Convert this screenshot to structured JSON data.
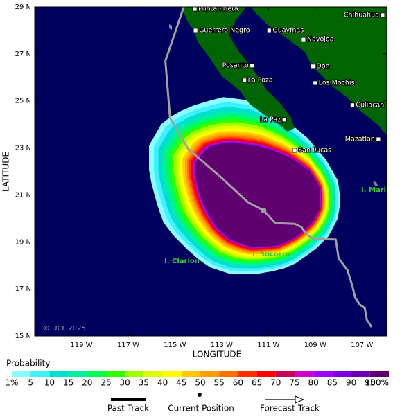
{
  "chart_data": {
    "type": "map",
    "xlabel": "LONGITUDE",
    "ylabel": "LATITUDE",
    "xlim": [
      121,
      105.94
    ],
    "ylim": [
      15,
      29
    ],
    "xticks": [
      {
        "value": 119,
        "label": "119 W"
      },
      {
        "value": 117,
        "label": "117 W"
      },
      {
        "value": 115,
        "label": "115 W"
      },
      {
        "value": 113,
        "label": "113 W"
      },
      {
        "value": 111,
        "label": "111 W"
      },
      {
        "value": 109,
        "label": "109 W"
      },
      {
        "value": 107,
        "label": "107 W"
      }
    ],
    "yticks": [
      {
        "value": 15,
        "label": "15 N"
      },
      {
        "value": 17,
        "label": "17 N"
      },
      {
        "value": 19,
        "label": "19 N"
      },
      {
        "value": 21,
        "label": "21 N"
      },
      {
        "value": 23,
        "label": "23 N"
      },
      {
        "value": 25,
        "label": "25 N"
      },
      {
        "value": 27,
        "label": "27 N"
      },
      {
        "value": 29,
        "label": "29 N"
      }
    ],
    "places": [
      {
        "name": "Punta Prieta",
        "lon": 114.15,
        "lat": 28.91
      },
      {
        "name": "Guerrero Negro",
        "lon": 114.12,
        "lat": 28.0
      },
      {
        "name": "Guaymas",
        "lon": 110.97,
        "lat": 28.0
      },
      {
        "name": "Chihuahua",
        "lon": 106.12,
        "lat": 28.65
      },
      {
        "name": "Navojoa",
        "lon": 109.5,
        "lat": 27.61
      },
      {
        "name": "Posarito",
        "lon": 111.7,
        "lat": 26.5
      },
      {
        "name": "Don",
        "lon": 109.1,
        "lat": 26.47
      },
      {
        "name": "La Poza",
        "lon": 112.03,
        "lat": 25.88
      },
      {
        "name": "Los Mochis",
        "lon": 109.0,
        "lat": 25.76
      },
      {
        "name": "Culiacan",
        "lon": 107.41,
        "lat": 24.82
      },
      {
        "name": "La Paz",
        "lon": 110.32,
        "lat": 24.2
      },
      {
        "name": "Mazatlan",
        "lon": 106.3,
        "lat": 23.37
      },
      {
        "name": "San Lucas",
        "lon": 109.88,
        "lat": 22.9
      }
    ],
    "islands": [
      "I. Clarion",
      "I. Socorro",
      "I. Maria"
    ],
    "past_track": {
      "name": "Past Track",
      "color": "#a0a0a0",
      "lon": [
        114.62,
        115.41,
        115.21,
        114.44,
        113.06,
        111.88,
        111.21
      ],
      "lat": [
        29.0,
        26.7,
        24.28,
        22.96,
        21.78,
        20.69,
        20.34
      ]
    },
    "current_position": {
      "name": "Current Position",
      "lon": 111.21,
      "lat": 20.34
    },
    "forecast_track": {
      "name": "Forecast Track",
      "color": "#a0a0a0",
      "lon": [
        111.21,
        110.71,
        109.88,
        109.59,
        109.38,
        109.09,
        108.12,
        108.0,
        107.62,
        107.41,
        107.29,
        107.09,
        106.88,
        106.79,
        106.59
      ],
      "lat": [
        20.34,
        19.8,
        19.77,
        19.63,
        19.33,
        19.13,
        19.1,
        18.3,
        17.8,
        17.12,
        16.62,
        16.33,
        16.18,
        15.68,
        15.38
      ]
    },
    "credit": "© UCL 2025",
    "probability": {
      "title": "Probability",
      "ticks": [
        {
          "value": 1,
          "label": "1%"
        },
        5,
        10,
        15,
        20,
        25,
        30,
        35,
        40,
        45,
        50,
        55,
        60,
        65,
        70,
        75,
        80,
        85,
        90,
        95,
        {
          "value": 100,
          "label": "100%"
        }
      ],
      "colors": [
        "#8affff",
        "#40f0ff",
        "#00e0d0",
        "#00f0a0",
        "#00ff50",
        "#30ff00",
        "#a0ff00",
        "#e0ff00",
        "#ffff00",
        "#ffc800",
        "#ffa000",
        "#ff7000",
        "#ff3000",
        "#ff0000",
        "#c8005a",
        "#d000d0",
        "#a000ff",
        "#8000e0",
        "#6a00b0",
        "#600070"
      ]
    }
  }
}
